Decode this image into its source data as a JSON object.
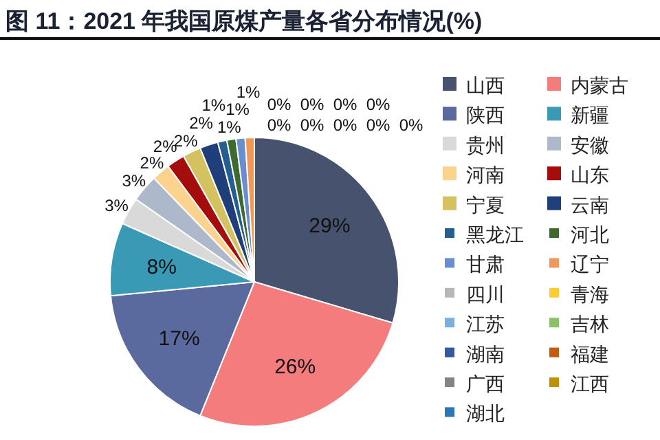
{
  "chart_data": {
    "type": "pie",
    "title": "图 11：2021 年我国原煤产量各省分布情况(%)",
    "categories": [
      "山西",
      "内蒙古",
      "陕西",
      "新疆",
      "贵州",
      "安徽",
      "河南",
      "山东",
      "宁夏",
      "云南",
      "黑龙江",
      "河北",
      "甘肃",
      "辽宁",
      "四川",
      "青海",
      "江苏",
      "吉林",
      "湖南",
      "福建",
      "广西",
      "江西",
      "湖北"
    ],
    "values": [
      29,
      26,
      17,
      8,
      3,
      3,
      2,
      2,
      2,
      2,
      1,
      1,
      1,
      1,
      0,
      0,
      0,
      0,
      0,
      0,
      0,
      0,
      0
    ],
    "value_labels": [
      "29%",
      "26%",
      "17%",
      "8%",
      "3%",
      "3%",
      "2%",
      "2%",
      "2%",
      "2%",
      "1%",
      "1%",
      "1%",
      "1%",
      "0%",
      "0%",
      "0%",
      "0%",
      "0%",
      "0%",
      "0%",
      "0%",
      "0%"
    ],
    "colors": [
      "#46526e",
      "#f47c7c",
      "#5a6a9e",
      "#3a9ab5",
      "#d9d9d9",
      "#adb9ca",
      "#fcd38e",
      "#a50d0d",
      "#d4c160",
      "#1f3f7a",
      "#255e91",
      "#3e6a2d",
      "#698ed0",
      "#f1975a",
      "#b7b7b7",
      "#ffcd33",
      "#7cafdd",
      "#8cc168",
      "#335aa1",
      "#c55a11",
      "#848484",
      "#bf9000",
      "#2e75b6"
    ],
    "legend": "right"
  }
}
